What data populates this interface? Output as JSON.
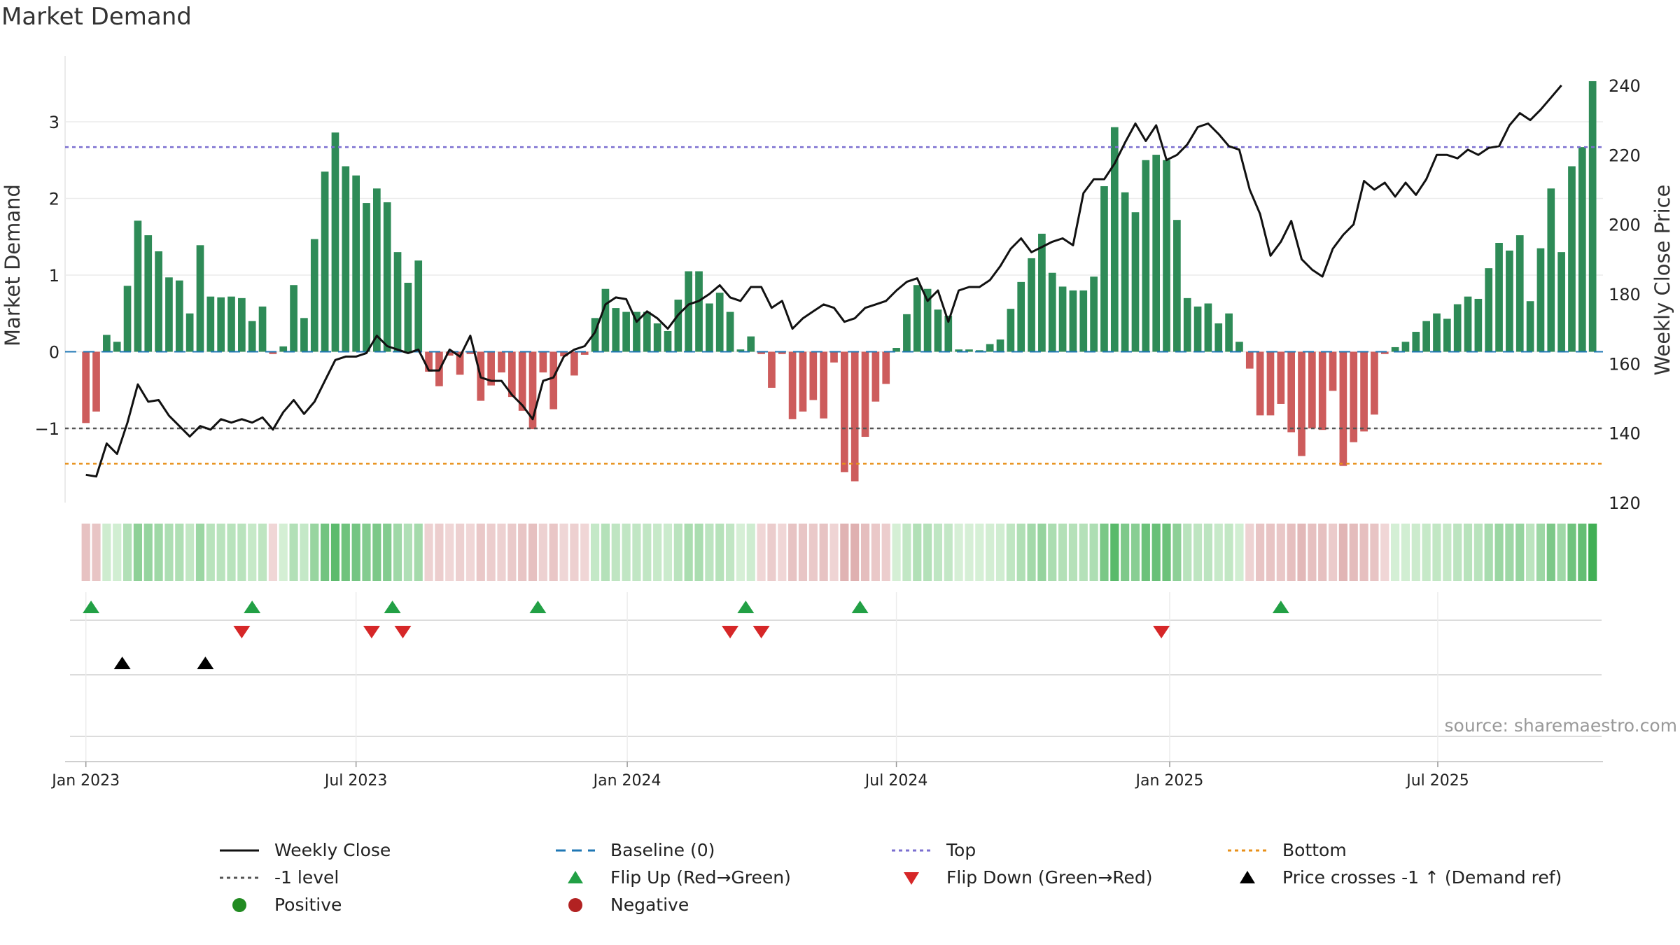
{
  "title": "Market Demand",
  "source": "source: sharemaestro.com",
  "colors": {
    "positive": "#2e8b57",
    "negative": "#cd5c5c",
    "line": "#111111",
    "top": "#7b6fd0",
    "bottom": "#e8901a",
    "minus1": "#555555",
    "baseline": "#1f77b4",
    "flipUp": "#22a045",
    "flipDown": "#d62728"
  },
  "chart_data": {
    "type": "bar+line",
    "title": "Market Demand",
    "ylabel": "Market Demand",
    "y2label": "Weekly Close Price",
    "ylim": [
      -2.0,
      3.8
    ],
    "y2lim": [
      120,
      243
    ],
    "yticks": [
      -1,
      0,
      1,
      2,
      3
    ],
    "y2ticks": [
      120,
      140,
      160,
      180,
      200,
      220,
      240
    ],
    "x_range_week": [
      -2,
      146
    ],
    "xticks": [
      {
        "label": "Jan 2023",
        "week": 0
      },
      {
        "label": "Jul 2023",
        "week": 26
      },
      {
        "label": "Jan 2024",
        "week": 52.1
      },
      {
        "label": "Jul 2024",
        "week": 78
      },
      {
        "label": "Jan 2025",
        "week": 104.3
      },
      {
        "label": "Jul 2025",
        "week": 130.1
      }
    ],
    "levels": {
      "top": 2.67,
      "bottom": -1.46,
      "minus1": -1.0,
      "baseline": 0
    },
    "demand": [
      -0.93,
      -0.78,
      0.22,
      0.13,
      0.86,
      1.71,
      1.52,
      1.31,
      0.97,
      0.93,
      0.5,
      1.39,
      0.72,
      0.71,
      0.72,
      0.7,
      0.4,
      0.59,
      -0.03,
      0.07,
      0.87,
      0.44,
      1.47,
      2.35,
      2.86,
      2.42,
      2.3,
      1.94,
      2.13,
      1.95,
      1.3,
      0.9,
      1.19,
      -0.26,
      -0.45,
      -0.05,
      -0.3,
      -0.03,
      -0.64,
      -0.44,
      -0.27,
      -0.59,
      -0.77,
      -1.01,
      -0.27,
      -0.75,
      -0.06,
      -0.31,
      -0.04,
      0.44,
      0.82,
      0.57,
      0.52,
      0.52,
      0.52,
      0.37,
      0.27,
      0.68,
      1.05,
      1.05,
      0.63,
      0.77,
      0.52,
      0.03,
      0.2,
      -0.03,
      -0.47,
      -0.03,
      -0.88,
      -0.78,
      -0.63,
      -0.87,
      -0.14,
      -1.57,
      -1.69,
      -1.11,
      -0.65,
      -0.42,
      0.05,
      0.49,
      0.87,
      0.82,
      0.55,
      0.47,
      0.03,
      0.03,
      0.02,
      0.1,
      0.16,
      0.56,
      0.91,
      1.22,
      1.54,
      1.03,
      0.85,
      0.8,
      0.8,
      0.98,
      2.16,
      2.93,
      2.08,
      1.82,
      2.5,
      2.57,
      2.5,
      1.72,
      0.7,
      0.59,
      0.63,
      0.37,
      0.5,
      0.13,
      -0.22,
      -0.83,
      -0.83,
      -0.68,
      -1.05,
      -1.36,
      -1.0,
      -1.02,
      -0.51,
      -1.49,
      -1.18,
      -1.04,
      -0.82,
      -0.03,
      0.06,
      0.13,
      0.26,
      0.4,
      0.5,
      0.43,
      0.62,
      0.72,
      0.69,
      1.09,
      1.42,
      1.32,
      1.52,
      0.66,
      1.35,
      2.13,
      1.3,
      2.42,
      2.67,
      3.53
    ],
    "close": [
      128,
      127.5,
      137,
      134,
      143,
      154,
      149,
      149.5,
      145,
      142,
      139,
      142,
      141,
      144,
      143,
      144,
      143,
      144.5,
      141,
      146,
      149.5,
      145.5,
      149,
      155,
      161,
      162,
      162,
      163,
      168,
      165,
      164,
      163,
      164,
      158,
      158,
      164,
      162,
      168,
      156,
      155,
      155,
      151,
      148,
      144,
      155,
      156,
      162,
      164,
      165,
      169,
      177,
      179,
      178.5,
      172,
      175,
      173,
      170,
      174,
      177,
      178,
      180,
      182.5,
      179,
      178,
      182,
      182,
      176,
      178,
      170,
      173,
      175,
      177,
      176,
      172,
      173,
      176,
      177,
      178,
      181,
      183.5,
      184.5,
      178,
      181,
      172,
      181,
      182,
      182,
      184,
      188,
      193,
      196,
      192,
      193.5,
      195,
      196,
      194,
      209,
      213,
      213,
      217.5,
      223.5,
      229,
      224,
      228.5,
      218.5,
      220,
      223,
      228,
      229,
      226,
      222.5,
      221.5,
      210,
      203,
      191,
      195,
      201,
      190,
      187,
      185,
      193,
      197,
      200,
      212.5,
      210,
      212,
      208,
      212,
      208.5,
      213,
      220,
      220,
      219,
      221.5,
      220,
      222,
      222.5,
      228.5,
      232,
      230,
      233,
      236.5,
      240
    ],
    "flip_up_weeks": [
      0.5,
      16,
      29.5,
      43.5,
      63.5,
      74.5,
      115
    ],
    "flip_down_weeks": [
      15,
      27.5,
      30.5,
      62,
      65,
      103.5
    ],
    "price_cross_weeks": [
      3.5,
      11.5
    ],
    "legend": [
      {
        "key": "weekly_close",
        "label": "Weekly Close"
      },
      {
        "key": "baseline",
        "label": "Baseline (0)"
      },
      {
        "key": "top",
        "label": "Top"
      },
      {
        "key": "bottom",
        "label": "Bottom"
      },
      {
        "key": "minus1",
        "label": "-1 level"
      },
      {
        "key": "flip_up",
        "label": "Flip Up (Red→Green)"
      },
      {
        "key": "flip_down",
        "label": "Flip Down (Green→Red)"
      },
      {
        "key": "price_cross",
        "label": "Price crosses -1 ↑ (Demand ref)"
      },
      {
        "key": "positive",
        "label": "Positive"
      },
      {
        "key": "negative",
        "label": "Negative"
      }
    ]
  }
}
